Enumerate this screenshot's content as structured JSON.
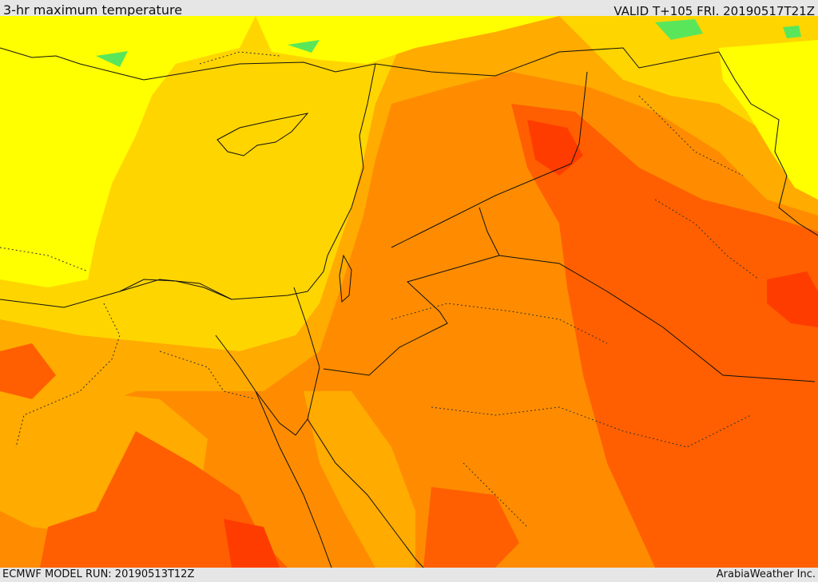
{
  "header": {
    "title": "3-hr maximum temperature",
    "valid": "VALID T+105 FRI. 20190517T21Z"
  },
  "footer": {
    "model_run": "ECMWF MODEL RUN: 20190513T12Z",
    "credit": "ArabiaWeather Inc."
  },
  "colors": {
    "cool_green": "#5ae65a",
    "yellow": "#ffff00",
    "gold": "#ffd500",
    "amber": "#ffab00",
    "orange": "#ff8c00",
    "dark_orange": "#ff5f00",
    "red_orange": "#ff3c00"
  }
}
